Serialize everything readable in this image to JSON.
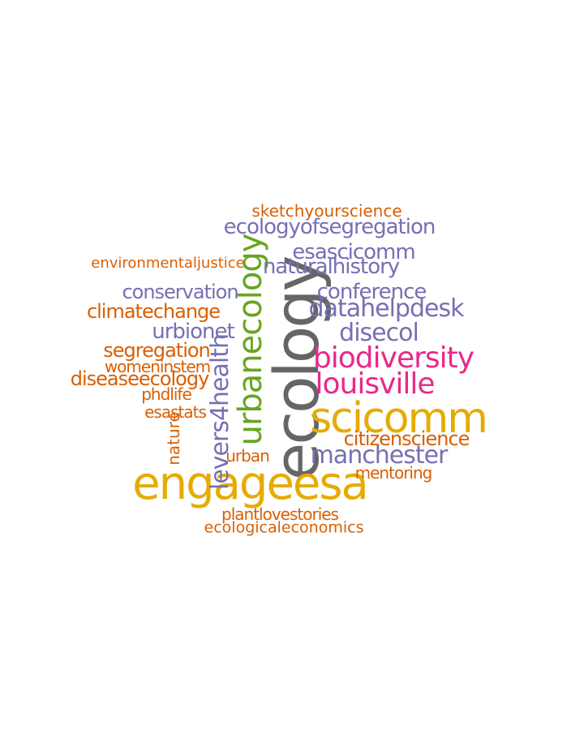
{
  "palette": {
    "orange": "#d95f02",
    "purple": "#7570b3",
    "magenta": "#e7298a",
    "green": "#66a61e",
    "gold": "#e6ab02",
    "gray": "#666666"
  },
  "words": [
    {
      "text": "ecology",
      "color": "gray"
    },
    {
      "text": "engageesa",
      "color": "gold"
    },
    {
      "text": "scicomm",
      "color": "gold"
    },
    {
      "text": "urbanecology",
      "color": "green"
    },
    {
      "text": "biodiversity",
      "color": "magenta"
    },
    {
      "text": "louisville",
      "color": "magenta"
    },
    {
      "text": "levers4health",
      "color": "purple"
    },
    {
      "text": "manchester",
      "color": "purple"
    },
    {
      "text": "datahelpdesk",
      "color": "purple"
    },
    {
      "text": "disecol",
      "color": "purple"
    },
    {
      "text": "ecologyofsegregation",
      "color": "purple"
    },
    {
      "text": "esascicomm",
      "color": "purple"
    },
    {
      "text": "naturalhistory",
      "color": "purple"
    },
    {
      "text": "conference",
      "color": "purple"
    },
    {
      "text": "conservation",
      "color": "purple"
    },
    {
      "text": "urbionet",
      "color": "purple"
    },
    {
      "text": "climatechange",
      "color": "orange"
    },
    {
      "text": "segregation",
      "color": "orange"
    },
    {
      "text": "diseaseecology",
      "color": "orange"
    },
    {
      "text": "citizenscience",
      "color": "orange"
    },
    {
      "text": "womeninstem",
      "color": "orange"
    },
    {
      "text": "sketchyourscience",
      "color": "orange"
    },
    {
      "text": "environmentaljustice",
      "color": "orange"
    },
    {
      "text": "phdlife",
      "color": "orange"
    },
    {
      "text": "esastats",
      "color": "orange"
    },
    {
      "text": "nature",
      "color": "orange"
    },
    {
      "text": "urban",
      "color": "orange"
    },
    {
      "text": "mentoring",
      "color": "orange"
    },
    {
      "text": "plantlovestories",
      "color": "orange"
    },
    {
      "text": "ecologicaleconomics",
      "color": "orange"
    }
  ]
}
